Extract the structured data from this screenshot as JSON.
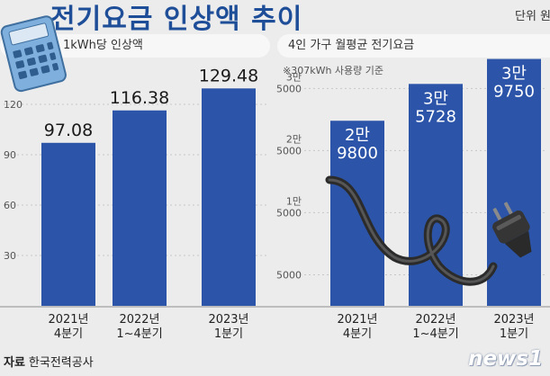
{
  "title": "전기요금 인상액 추이",
  "unit_label": "단위 원",
  "source": {
    "label": "자료",
    "value": "한국전력공사"
  },
  "logo_text": "news1",
  "colors": {
    "bar": "#2c55a9",
    "title": "#1f4e99",
    "background": "#ececec",
    "gridline": "#c7c7c7"
  },
  "icons": [
    "calculator-icon",
    "power-plug-icon"
  ],
  "chart_data": [
    {
      "type": "bar",
      "title": "1kWh당 인상액",
      "categories": [
        [
          "2021년",
          "4분기"
        ],
        [
          "2022년",
          "1~4분기"
        ],
        [
          "2023년",
          "1분기"
        ]
      ],
      "values": [
        97.08,
        116.38,
        129.48
      ],
      "value_labels": [
        "97.08",
        "116.38",
        "129.48"
      ],
      "yticks": [
        30,
        60,
        90,
        120
      ],
      "ylim": [
        0,
        150
      ],
      "grid": true
    },
    {
      "type": "bar",
      "title": "4인 가구 월평균 전기요금",
      "subtitle": "※307kWh 사용량 기준",
      "categories": [
        [
          "2021년",
          "4분기"
        ],
        [
          "2022년",
          "1~4분기"
        ],
        [
          "2023년",
          "1분기"
        ]
      ],
      "values": [
        29800,
        35728,
        39750
      ],
      "value_labels": [
        [
          "2만",
          "9800"
        ],
        [
          "3만",
          "5728"
        ],
        [
          "3만",
          "9750"
        ]
      ],
      "yticks": [
        [
          [
            "5000"
          ],
          5000
        ],
        [
          [
            "1만",
            "5000"
          ],
          15000
        ],
        [
          [
            "2만",
            "5000"
          ],
          25000
        ],
        [
          [
            "3만",
            "5000"
          ],
          35000
        ]
      ],
      "ylim": [
        0,
        42000
      ],
      "grid": true
    }
  ]
}
